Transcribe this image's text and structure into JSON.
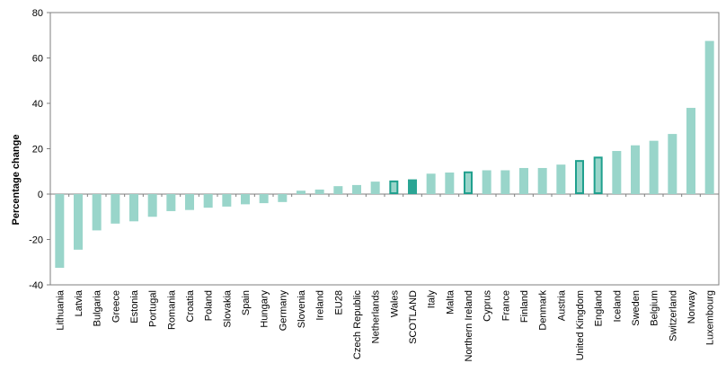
{
  "chart_data": {
    "type": "bar",
    "title": "",
    "xlabel": "",
    "ylabel": "Percentage change",
    "ylim": [
      -40,
      80
    ],
    "yticks": [
      -40,
      -20,
      0,
      20,
      40,
      60,
      80
    ],
    "grid": false,
    "categories": [
      "Lithuania",
      "Latvia",
      "Bulgaria",
      "Greece",
      "Estonia",
      "Portugal",
      "Romania",
      "Croatia",
      "Poland",
      "Slovakia",
      "Spain",
      "Hungary",
      "Germany",
      "Slovenia",
      "Ireland",
      "EU28",
      "Czech Republic",
      "Netherlands",
      "Wales",
      "SCOTLAND",
      "Italy",
      "Malta",
      "Northern Ireland",
      "Cyprus",
      "France",
      "Finland",
      "Denmark",
      "Austria",
      "United Kingdom",
      "England",
      "Iceland",
      "Sweden",
      "Belgium",
      "Switzerland",
      "Norway",
      "Luxembourg"
    ],
    "values": [
      -32.5,
      -24.5,
      -16,
      -13,
      -12,
      -10,
      -7.5,
      -7,
      -6,
      -5.5,
      -4.5,
      -4,
      -3.5,
      1.5,
      2,
      3.5,
      4,
      5.5,
      6,
      6.5,
      9,
      9.5,
      10,
      10.5,
      10.5,
      11.5,
      11.5,
      13,
      15,
      16.5,
      19,
      21.5,
      23.5,
      26.5,
      38,
      67.5
    ],
    "highlight_outline": [
      "Wales",
      "Northern Ireland",
      "United Kingdom",
      "England"
    ],
    "highlight_solid": [
      "SCOTLAND"
    ],
    "colors": {
      "bar": "#99d5ca",
      "highlight_fill": "#2aa594",
      "highlight_stroke": "#20a08e",
      "axis": "#7f7f7f"
    }
  }
}
